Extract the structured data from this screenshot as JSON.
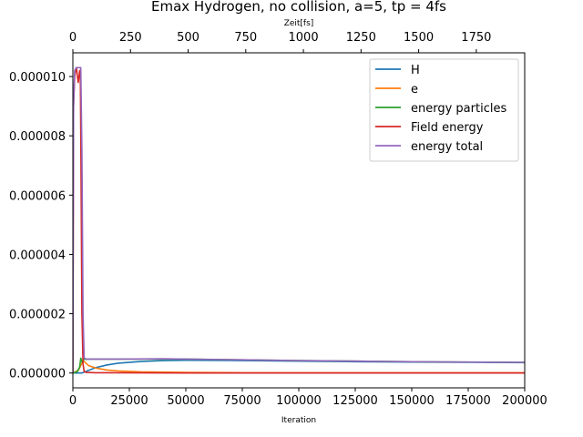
{
  "chart_data": {
    "type": "line",
    "title": "Emax Hydrogen, no collision, a=5, tp = 4fs",
    "xlabel": "Iteration",
    "ylabel": "",
    "secondary_xlabel": "Zeit[fs]",
    "xlim": [
      0,
      200000
    ],
    "ylim": [
      -5e-07,
      1.08e-05
    ],
    "secondary_xlim": [
      0,
      1960
    ],
    "x_ticks": [
      "0",
      "25000",
      "50000",
      "75000",
      "100000",
      "125000",
      "150000",
      "175000",
      "200000"
    ],
    "x_tick_values": [
      0,
      25000,
      50000,
      75000,
      100000,
      125000,
      150000,
      175000,
      200000
    ],
    "y_ticks": [
      "0.000000",
      "0.000002",
      "0.000004",
      "0.000006",
      "0.000008",
      "0.000010"
    ],
    "y_tick_values": [
      0,
      2e-06,
      4e-06,
      6e-06,
      8e-06,
      1e-05
    ],
    "secondary_x_ticks": [
      "0",
      "250",
      "500",
      "750",
      "1000",
      "1250",
      "1500",
      "1750"
    ],
    "secondary_x_tick_values": [
      0,
      250,
      500,
      750,
      1000,
      1250,
      1500,
      1750
    ],
    "grid": false,
    "legend_position": "top-right",
    "series": [
      {
        "name": "H",
        "color": "#1f77b4",
        "x": [
          0,
          4000,
          5000,
          6000,
          8000,
          10000,
          15000,
          20000,
          30000,
          40000,
          50000,
          75000,
          100000,
          125000,
          150000,
          175000,
          200000
        ],
        "y": [
          0,
          0,
          3e-08,
          6e-08,
          1.2e-07,
          1.8e-07,
          2.7e-07,
          3.3e-07,
          3.9e-07,
          4.2e-07,
          4.3e-07,
          4.2e-07,
          4e-07,
          3.8e-07,
          3.7e-07,
          3.6e-07,
          3.5e-07
        ]
      },
      {
        "name": "e",
        "color": "#ff7f0e",
        "x": [
          0,
          2500,
          3500,
          4500,
          5500,
          7000,
          10000,
          15000,
          20000,
          30000,
          50000,
          75000,
          100000,
          150000,
          200000
        ],
        "y": [
          0,
          1e-07,
          2.5e-07,
          4.2e-07,
          3.5e-07,
          2.5e-07,
          1.7e-07,
          1e-07,
          7e-08,
          4e-08,
          2e-08,
          1e-08,
          1e-08,
          1e-08,
          1e-08
        ]
      },
      {
        "name": "energy particles",
        "color": "#2ca02c",
        "x": [
          0,
          2000,
          3000,
          3500,
          4200,
          4800,
          5500,
          7000,
          10000,
          20000,
          50000,
          100000,
          150000,
          200000
        ],
        "y": [
          0,
          5e-08,
          2e-07,
          5e-07,
          3.5e-07,
          4.7e-07,
          4.6e-07,
          4.7e-07,
          4.7e-07,
          4.7e-07,
          4.7e-07,
          4.2e-07,
          3.8e-07,
          3.6e-07
        ]
      },
      {
        "name": "Field energy",
        "color": "#d62728",
        "x": [
          0,
          300,
          800,
          1200,
          1600,
          2000,
          2400,
          2700,
          3000,
          3300,
          3600,
          4000,
          4500,
          5000,
          6000,
          10000,
          50000,
          100000,
          200000
        ],
        "y": [
          0,
          9e-06,
          1e-05,
          1.02e-05,
          1.03e-05,
          1e-05,
          9.8e-06,
          1e-05,
          1.02e-05,
          1.02e-05,
          7e-06,
          2e-06,
          3e-07,
          5e-08,
          2e-08,
          1e-08,
          0,
          0,
          0
        ]
      },
      {
        "name": "energy total",
        "color": "#9467bd",
        "x": [
          0,
          300,
          800,
          1500,
          2500,
          3000,
          3500,
          4000,
          4500,
          5000,
          6000,
          10000,
          20000,
          40000,
          60000,
          100000,
          150000,
          200000
        ],
        "y": [
          0,
          9e-06,
          1.02e-05,
          1.03e-05,
          1.03e-05,
          1.03e-05,
          1.03e-05,
          7.5e-06,
          2e-06,
          5e-07,
          4.7e-07,
          4.7e-07,
          4.7e-07,
          4.8e-07,
          4.6e-07,
          4.2e-07,
          3.8e-07,
          3.6e-07
        ]
      }
    ]
  }
}
